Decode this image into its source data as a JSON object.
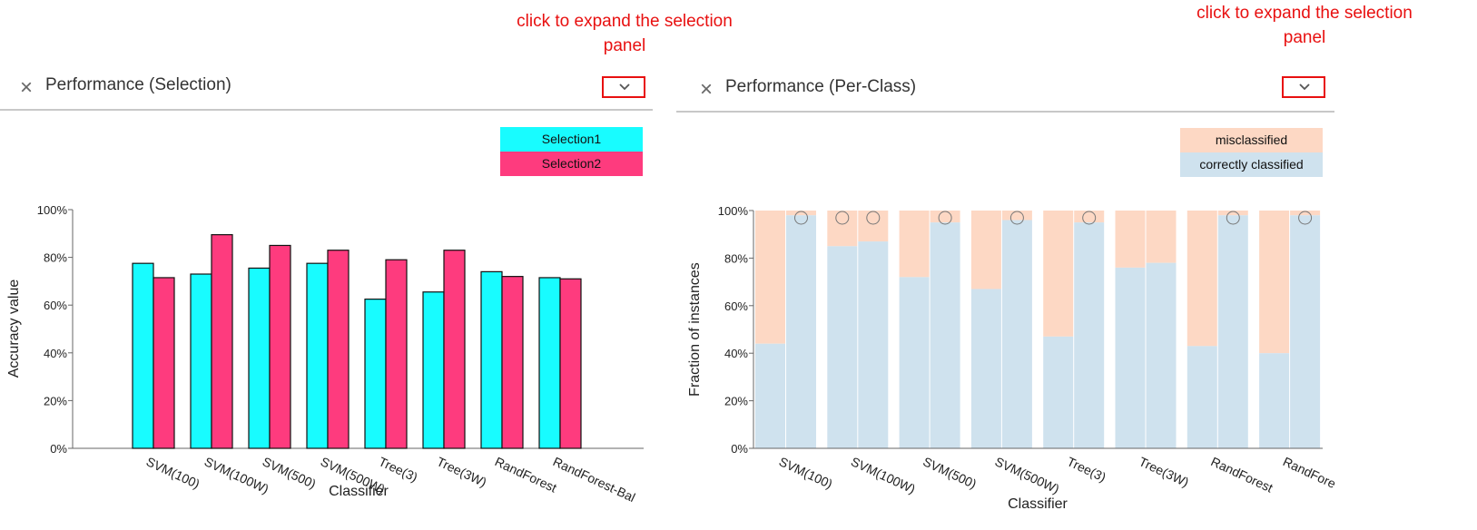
{
  "annotations": {
    "left_line1": "click to expand the selection",
    "left_line2": "panel",
    "right_line1": "click to expand the selection",
    "right_line2": "panel"
  },
  "colors": {
    "selection1": "#18fcff",
    "selection2": "#fe3b7e",
    "misclassified": "#fdd8c4",
    "correct": "#cfe2ee",
    "annotation": "#e81010"
  },
  "panels": {
    "left": {
      "title": "Performance (Selection)",
      "close_icon": "close-icon",
      "expand_icon": "chevron-down-icon"
    },
    "right": {
      "title": "Performance (Per-Class)",
      "close_icon": "close-icon",
      "expand_icon": "chevron-down-icon"
    }
  },
  "chart_data": [
    {
      "type": "bar",
      "title": "Performance (Selection)",
      "xlabel": "Classifier",
      "ylabel": "Accuracy value",
      "ylim": [
        0,
        100
      ],
      "yticks": [
        "0%",
        "20%",
        "40%",
        "60%",
        "80%",
        "100%"
      ],
      "categories": [
        "SVM(100)",
        "SVM(100W)",
        "SVM(500)",
        "SVM(500W)",
        "Tree(3)",
        "Tree(3W)",
        "RandForest",
        "RandForest-Bal"
      ],
      "series": [
        {
          "name": "Selection1",
          "values": [
            77.5,
            73,
            75.5,
            77.5,
            62.5,
            65.5,
            74,
            71.5
          ]
        },
        {
          "name": "Selection2",
          "values": [
            71.5,
            89.5,
            85,
            83,
            79,
            83,
            72,
            71
          ]
        }
      ],
      "legend": [
        "Selection1",
        "Selection2"
      ]
    },
    {
      "type": "bar",
      "stacked": true,
      "title": "Performance (Per-Class)",
      "xlabel": "Classifier",
      "ylabel": "Fraction of instances",
      "ylim": [
        0,
        100
      ],
      "yticks": [
        "0%",
        "20%",
        "40%",
        "60%",
        "80%",
        "100%"
      ],
      "categories": [
        "SVM(100)",
        "SVM(100W)",
        "SVM(500)",
        "SVM(500W)",
        "Tree(3)",
        "Tree(3W)",
        "RandForest",
        "RandFore"
      ],
      "classes_per_classifier": 2,
      "series": [
        {
          "name": "correctly classified",
          "values": [
            [
              44,
              98
            ],
            [
              85,
              87
            ],
            [
              72,
              95
            ],
            [
              67,
              96
            ],
            [
              47,
              95
            ],
            [
              76,
              78
            ],
            [
              43,
              98
            ],
            [
              40,
              98
            ]
          ]
        },
        {
          "name": "misclassified",
          "values": [
            [
              56,
              2
            ],
            [
              15,
              13
            ],
            [
              28,
              5
            ],
            [
              33,
              4
            ],
            [
              53,
              5
            ],
            [
              24,
              22
            ],
            [
              57,
              2
            ],
            [
              60,
              2
            ]
          ]
        }
      ],
      "markers": [
        [
          false,
          true
        ],
        [
          true,
          true
        ],
        [
          false,
          true
        ],
        [
          false,
          true
        ],
        [
          false,
          true
        ],
        [
          false,
          false
        ],
        [
          false,
          true
        ],
        [
          false,
          true
        ]
      ],
      "legend": [
        "misclassified",
        "correctly classified"
      ]
    }
  ]
}
